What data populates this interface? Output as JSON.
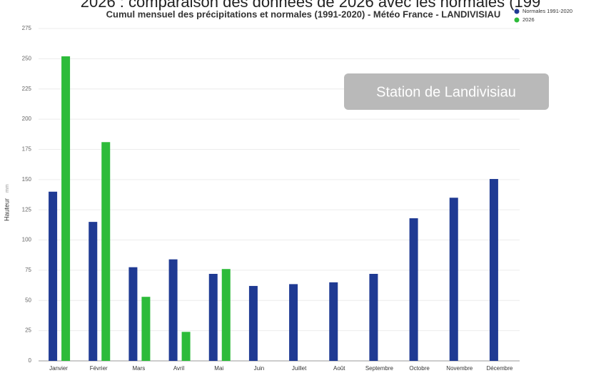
{
  "page_heading": "2026 : comparaison des données de 2026 avec les normales (199",
  "overlay": "Station de Landivisiau",
  "chart_data": {
    "type": "bar",
    "title": "Cumul mensuel des précipitations et normales (1991-2020) - Météo France - LANDIVISIAU",
    "y_label": "Hauteur",
    "y_unit": "mm",
    "categories": [
      "Janvier",
      "Février",
      "Mars",
      "Avril",
      "Mai",
      "Juin",
      "Juillet",
      "Août",
      "Septembre",
      "Octobre",
      "Novembre",
      "Décembre"
    ],
    "series": [
      {
        "name": "Normales 1991-2020",
        "color": "#1f3a93",
        "values": [
          140,
          115,
          77.5,
          84,
          72,
          62,
          63.5,
          65,
          72,
          118,
          135,
          150.5
        ]
      },
      {
        "name": "2026",
        "color": "#2dbb3a",
        "values": [
          252,
          181,
          53,
          24,
          76,
          null,
          null,
          null,
          null,
          null,
          null,
          null
        ]
      }
    ],
    "ylim": [
      0,
      275
    ],
    "yticks": [
      0,
      25,
      50,
      75,
      100,
      125,
      150,
      175,
      200,
      225,
      250,
      275
    ],
    "grid": true,
    "legend": "top-right"
  }
}
